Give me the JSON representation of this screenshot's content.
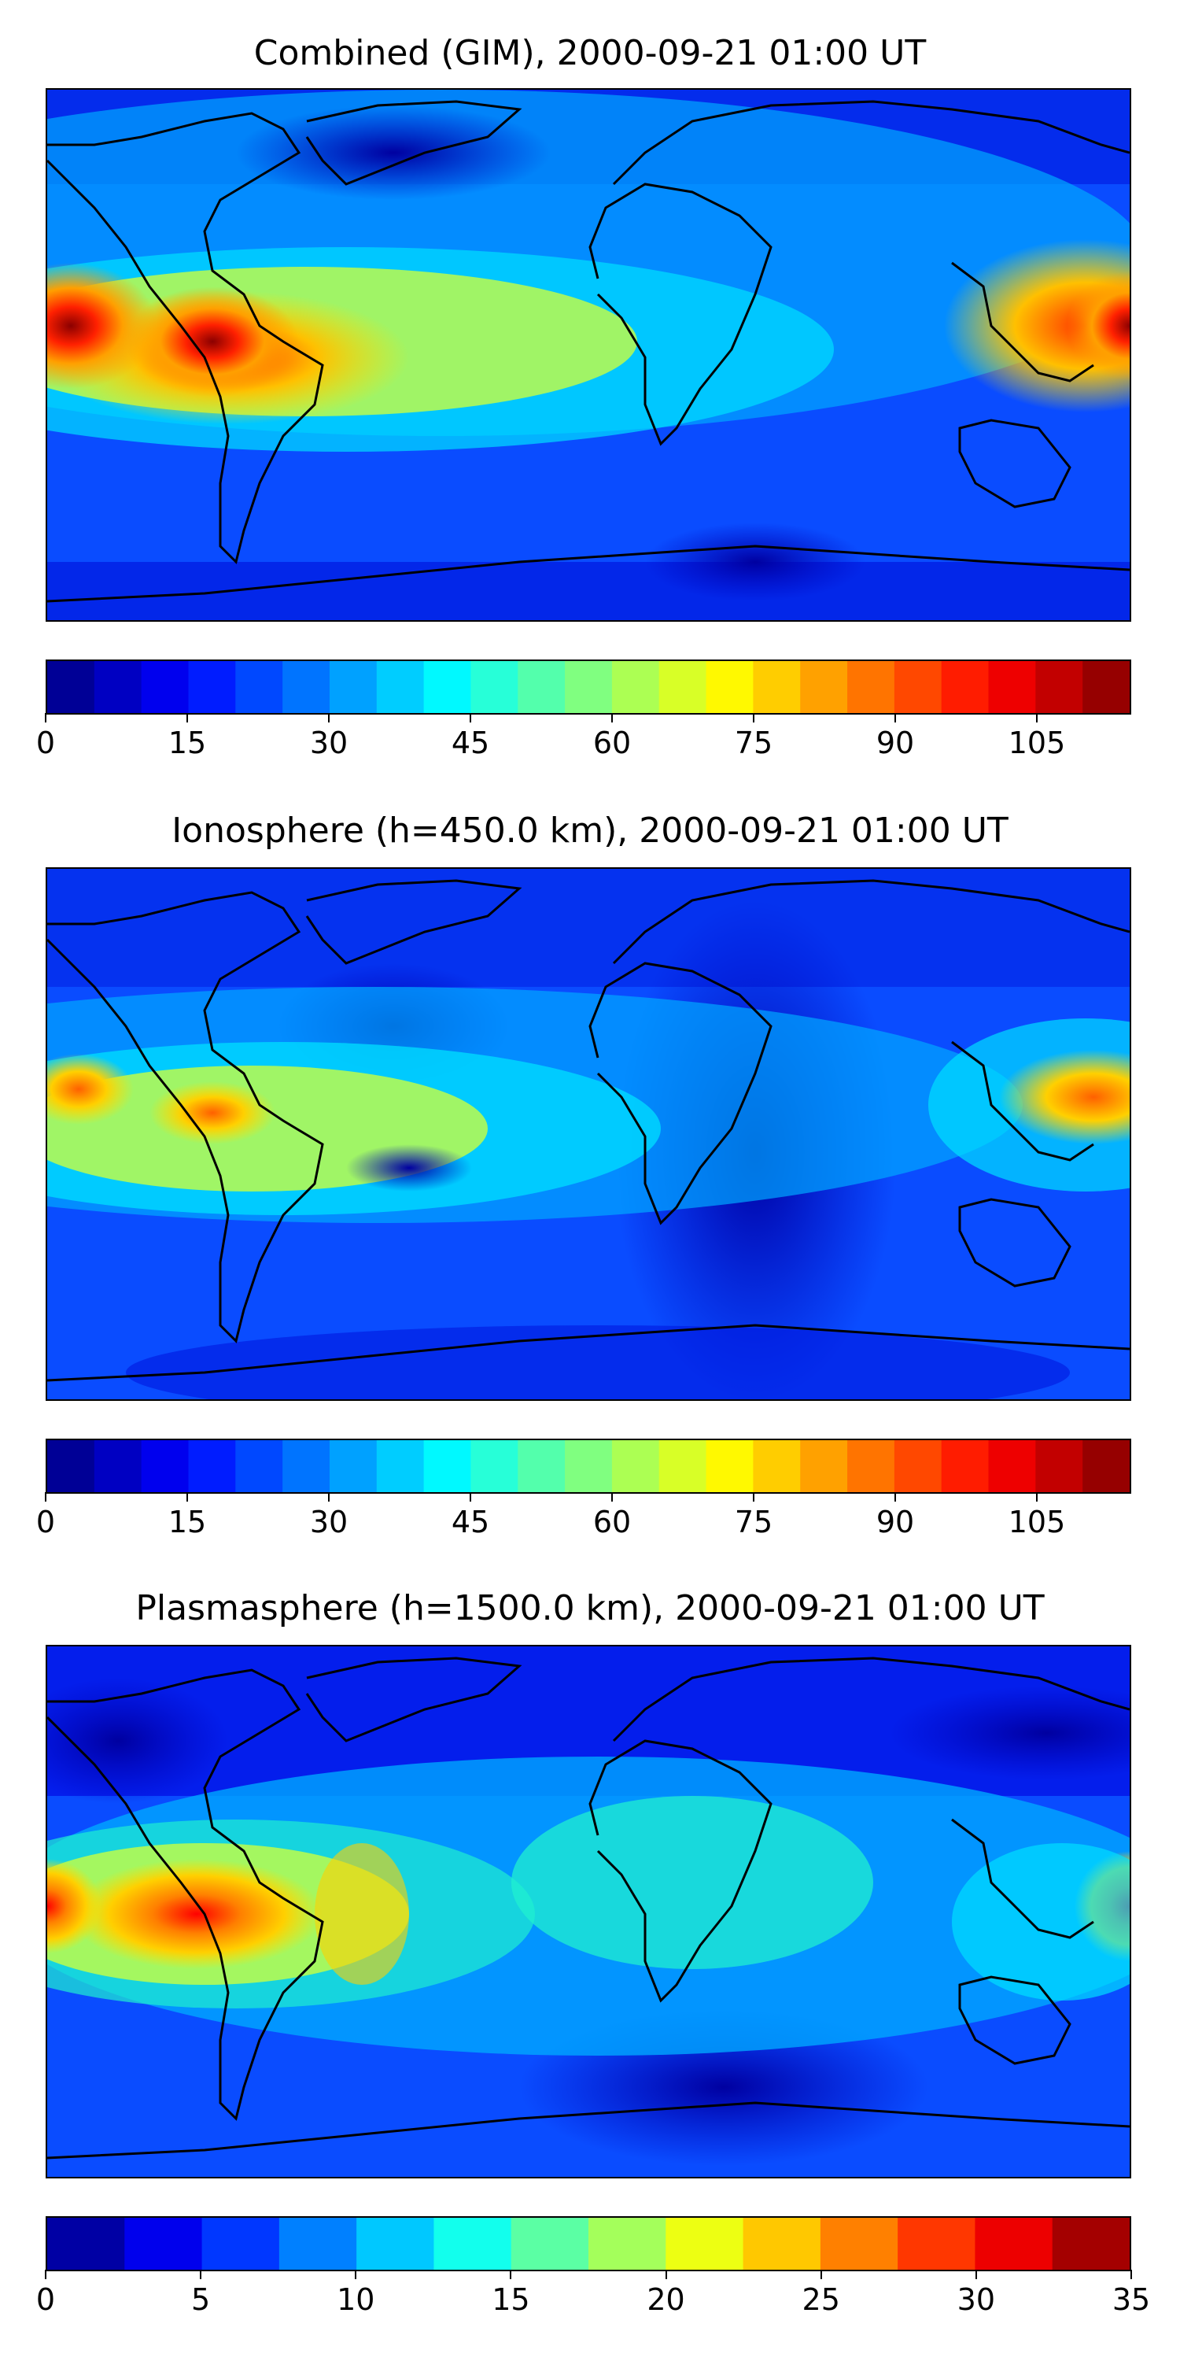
{
  "panels": [
    {
      "title": "Combined (GIM), 2000-09-21 01:00 UT",
      "colorbar": {
        "min": 0,
        "max": 115,
        "step": 5,
        "tick_labels": [
          "0",
          "15",
          "30",
          "45",
          "60",
          "75",
          "90",
          "105"
        ],
        "tick_values": [
          0,
          15,
          30,
          45,
          60,
          75,
          90,
          105
        ]
      }
    },
    {
      "title": "Ionosphere  (h=450.0 km), 2000-09-21 01:00 UT",
      "colorbar": {
        "min": 0,
        "max": 115,
        "step": 5,
        "tick_labels": [
          "0",
          "15",
          "30",
          "45",
          "60",
          "75",
          "90",
          "105"
        ],
        "tick_values": [
          0,
          15,
          30,
          45,
          60,
          75,
          90,
          105
        ]
      }
    },
    {
      "title": "Plasmasphere (h=1500.0 km), 2000-09-21 01:00 UT",
      "colorbar": {
        "min": 0,
        "max": 35,
        "step": 2.5,
        "tick_labels": [
          "0",
          "5",
          "10",
          "15",
          "20",
          "25",
          "30",
          "35"
        ],
        "tick_values": [
          0,
          5,
          10,
          15,
          20,
          25,
          30,
          35
        ]
      }
    }
  ],
  "colormap": "jet"
}
